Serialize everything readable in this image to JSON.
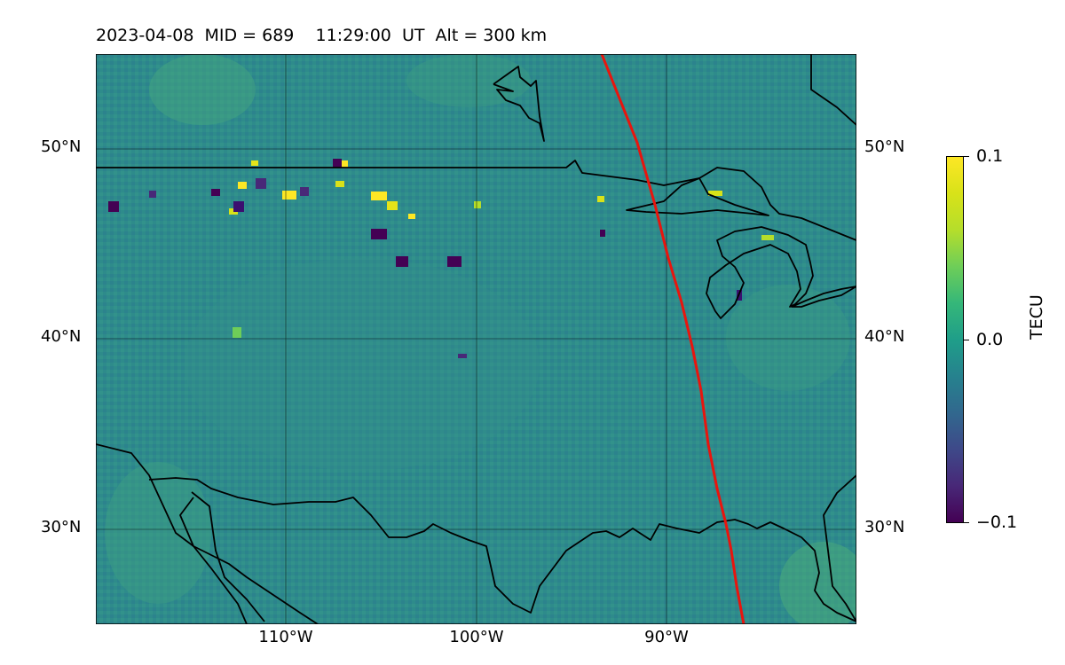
{
  "title": "2023-04-08  MID = 689    11:29:00  UT  Alt = 300 km",
  "map": {
    "projection": "PlateCarree",
    "extent": {
      "lon": [
        -119,
        -79
      ],
      "lat": [
        25,
        55
      ]
    },
    "gridlines": true,
    "lat_labels": [
      "30°N",
      "40°N",
      "50°N"
    ],
    "lon_labels": [
      "110°W",
      "100°W",
      "90°W"
    ],
    "features": [
      "coastlines",
      "country borders",
      "Great Lakes"
    ],
    "overlay_line_color": "#e8150e"
  },
  "colorbar": {
    "label": "TECU",
    "ticks": [
      "0.1",
      "0.0",
      "−0.1"
    ],
    "range": [
      -0.1,
      0.1
    ],
    "colormap": "viridis"
  }
}
